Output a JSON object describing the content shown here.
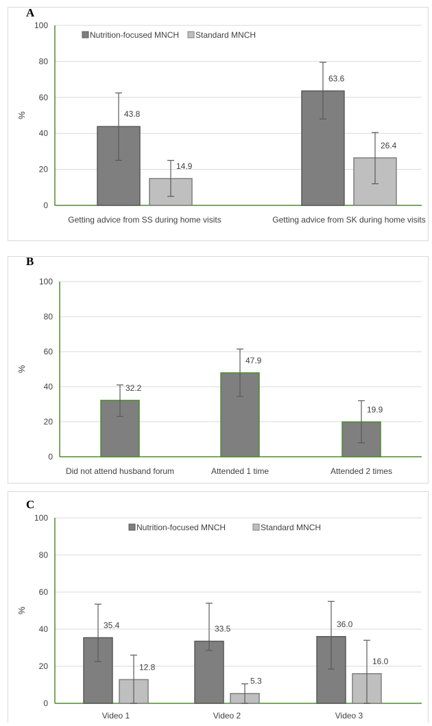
{
  "chart_data": [
    {
      "panel": "A",
      "type": "bar",
      "ylabel": "%",
      "ylim": [
        0,
        100
      ],
      "yticks": [
        0,
        20,
        40,
        60,
        80,
        100
      ],
      "categories": [
        "Getting advice from SS during home visits",
        "Getting advice from SK during home visits"
      ],
      "legend": "top",
      "series": [
        {
          "name": "Nutrition-focused MNCH",
          "values": [
            43.8,
            63.6
          ],
          "labels": [
            "43.8",
            "63.6"
          ],
          "err_low": [
            25,
            48
          ],
          "err_high": [
            62.5,
            79.5
          ],
          "color": "#7f7f7f",
          "stroke": "#595959"
        },
        {
          "name": "Standard MNCH",
          "values": [
            14.9,
            26.4
          ],
          "labels": [
            "14.9",
            "26.4"
          ],
          "err_low": [
            5,
            12
          ],
          "err_high": [
            25,
            40.5
          ],
          "color": "#bfbfbf",
          "stroke": "#7f7f7f"
        }
      ]
    },
    {
      "panel": "B",
      "type": "bar",
      "ylabel": "%",
      "ylim": [
        0,
        100
      ],
      "yticks": [
        0,
        20,
        40,
        60,
        80,
        100
      ],
      "categories": [
        "Did not attend husband forum",
        "Attended 1 time",
        "Attended 2 times"
      ],
      "series": [
        {
          "values": [
            32.2,
            47.9,
            19.9
          ],
          "labels": [
            "32.2",
            "47.9",
            "19.9"
          ],
          "err_low": [
            23,
            34.5,
            8
          ],
          "err_high": [
            41,
            61.5,
            32
          ],
          "color": "#7f7f7f",
          "stroke": "#4e8a2e"
        }
      ]
    },
    {
      "panel": "C",
      "type": "bar",
      "ylabel": "%",
      "ylim": [
        0,
        100
      ],
      "yticks": [
        0,
        20,
        40,
        60,
        80,
        100
      ],
      "categories": [
        "Video 1",
        "Video 2",
        "Video 3"
      ],
      "legend": "top",
      "series": [
        {
          "name": "Nutrition-focused MNCH",
          "values": [
            35.4,
            33.5,
            36.0
          ],
          "labels": [
            "35.4",
            "33.5",
            "36.0"
          ],
          "err_low": [
            22.5,
            28.5,
            18.5
          ],
          "err_high": [
            53.5,
            54,
            55
          ],
          "color": "#7f7f7f",
          "stroke": "#595959"
        },
        {
          "name": "Standard MNCH",
          "values": [
            12.8,
            5.3,
            16.0
          ],
          "labels": [
            "12.8",
            "5.3",
            "16.0"
          ],
          "err_low": [
            0,
            0,
            0
          ],
          "err_high": [
            26,
            10.5,
            34
          ],
          "color": "#bfbfbf",
          "stroke": "#7f7f7f"
        }
      ]
    }
  ]
}
